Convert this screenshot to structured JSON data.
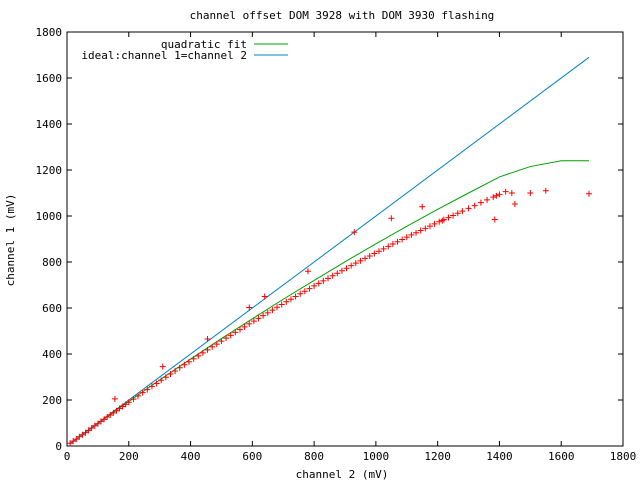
{
  "chart_data": {
    "type": "scatter",
    "title": "channel offset DOM 3928 with DOM 3930 flashing",
    "xlabel": "channel 2 (mV)",
    "ylabel": "channel 1 (mV)",
    "xlim": [
      0,
      1800
    ],
    "ylim": [
      0,
      1800
    ],
    "x_ticks": [
      0,
      200,
      400,
      600,
      800,
      1000,
      1200,
      1400,
      1600,
      1800
    ],
    "y_ticks": [
      0,
      200,
      400,
      600,
      800,
      1000,
      1200,
      1400,
      1600,
      1800
    ],
    "grid": false,
    "legend_position": "top-left",
    "series": [
      {
        "name": "quadratic fit",
        "kind": "line",
        "color": "#00a000",
        "x": [
          10,
          100,
          200,
          300,
          400,
          500,
          600,
          700,
          800,
          900,
          1000,
          1100,
          1200,
          1300,
          1400,
          1500,
          1600,
          1690
        ],
        "y": [
          10,
          98,
          193,
          287,
          378,
          467,
          553,
          638,
          720,
          801,
          879,
          955,
          1029,
          1100,
          1170,
          1215,
          1240,
          1240
        ]
      },
      {
        "name": "ideal:channel 1=channel 2",
        "kind": "line",
        "color": "#0080c0",
        "x": [
          10,
          1690
        ],
        "y": [
          10,
          1690
        ]
      },
      {
        "name": "",
        "kind": "points",
        "color": "#ff0000",
        "x": [
          10,
          20,
          30,
          40,
          50,
          60,
          70,
          80,
          90,
          100,
          110,
          120,
          130,
          140,
          150,
          160,
          170,
          180,
          190,
          200,
          215,
          230,
          245,
          260,
          275,
          290,
          305,
          320,
          335,
          350,
          365,
          380,
          395,
          410,
          425,
          440,
          455,
          470,
          485,
          500,
          515,
          530,
          545,
          560,
          575,
          590,
          605,
          620,
          635,
          650,
          665,
          680,
          695,
          710,
          725,
          740,
          755,
          770,
          785,
          800,
          815,
          830,
          845,
          860,
          875,
          890,
          905,
          920,
          935,
          950,
          965,
          980,
          995,
          1010,
          1025,
          1040,
          1055,
          1070,
          1085,
          1100,
          1115,
          1130,
          1145,
          1160,
          1175,
          1190,
          1205,
          1220,
          1235,
          1250,
          1265,
          1280,
          1300,
          1320,
          1340,
          1360,
          1380,
          1390,
          1400,
          1420,
          1440,
          1450,
          1500,
          1550,
          1690,
          155,
          310,
          455,
          590,
          640,
          780,
          930,
          1050,
          1150,
          1215,
          1385
        ],
        "y": [
          12,
          21,
          30,
          40,
          49,
          58,
          68,
          78,
          88,
          97,
          107,
          116,
          126,
          135,
          144,
          153,
          163,
          172,
          181,
          190,
          204,
          218,
          232,
          245,
          259,
          272,
          286,
          299,
          313,
          326,
          340,
          353,
          366,
          379,
          392,
          405,
          418,
          431,
          443,
          456,
          469,
          481,
          494,
          506,
          518,
          531,
          543,
          555,
          567,
          579,
          591,
          603,
          615,
          627,
          638,
          650,
          662,
          673,
          684,
          696,
          707,
          718,
          729,
          740,
          751,
          762,
          773,
          784,
          795,
          805,
          816,
          826,
          837,
          847,
          857,
          868,
          878,
          888,
          898,
          908,
          918,
          927,
          937,
          946,
          956,
          966,
          975,
          984,
          993,
          1002,
          1012,
          1021,
          1033,
          1045,
          1058,
          1070,
          1082,
          1088,
          1094,
          1106,
          1100,
          1052,
          1100,
          1110,
          1097,
          205,
          345,
          465,
          602,
          650,
          760,
          930,
          990,
          1040,
          980,
          985
        ]
      }
    ]
  }
}
